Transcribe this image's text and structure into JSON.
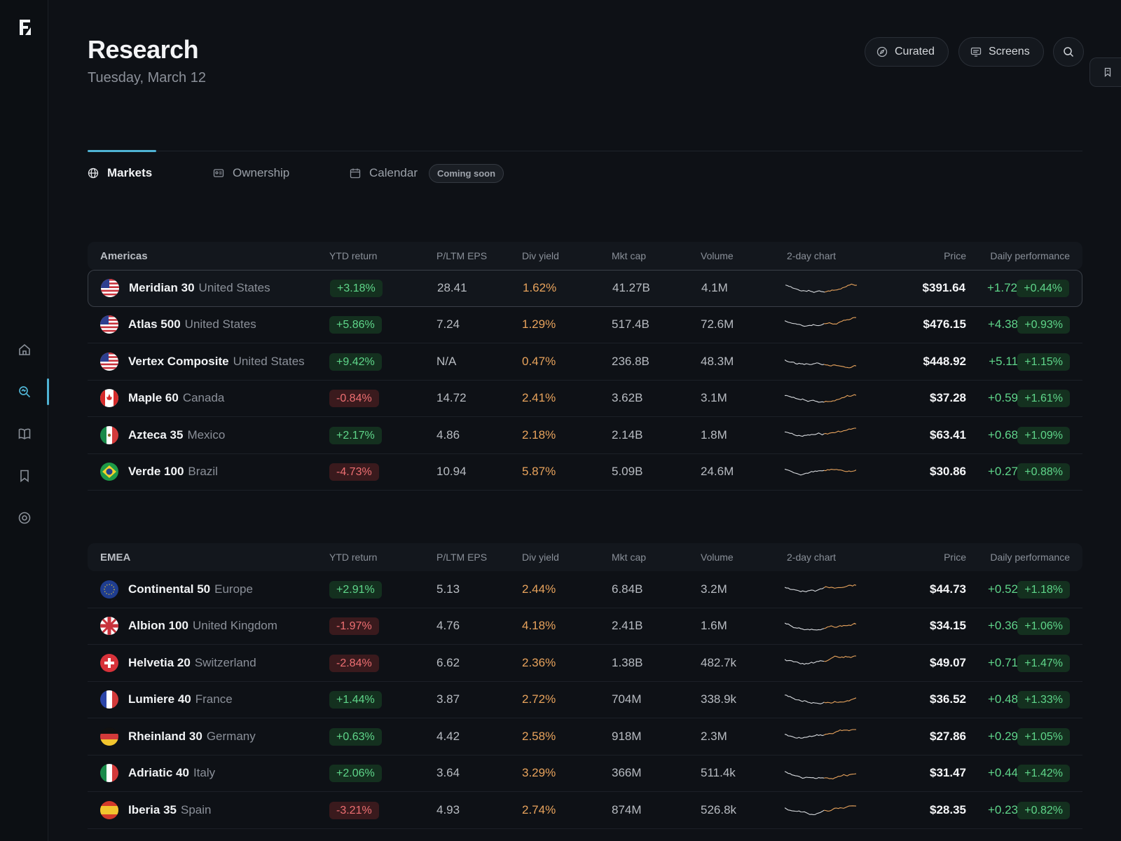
{
  "page": {
    "title": "Research",
    "date": "Tuesday, March 12"
  },
  "header_buttons": {
    "curated": "Curated",
    "screens": "Screens"
  },
  "tabs": [
    {
      "label": "Markets",
      "icon": "globe-icon"
    },
    {
      "label": "Ownership",
      "icon": "id-card-icon"
    },
    {
      "label": "Calendar",
      "icon": "calendar-icon",
      "badge": "Coming soon"
    }
  ],
  "sidebar": {
    "items": [
      "home-icon",
      "research-icon",
      "book-icon",
      "bookmark-icon",
      "settings-icon"
    ]
  },
  "columns": {
    "ytd": "YTD return",
    "pe": "P/LTM EPS",
    "div": "Div yield",
    "cap": "Mkt cap",
    "vol": "Volume",
    "chart": "2-day chart",
    "price": "Price",
    "perf": "Daily performance"
  },
  "colors": {
    "accent": "#4fb3d4",
    "positive": "#5fd68a",
    "negative": "#ee6f72",
    "yield": "#e8a35c"
  },
  "sections": [
    {
      "region": "Americas",
      "rows": [
        {
          "name": "Meridian 30",
          "country": "United States",
          "flag": "us",
          "ytd": "+3.18%",
          "pe": "28.41",
          "div": "1.62%",
          "cap": "41.27B",
          "vol": "4.1M",
          "price": "$391.64",
          "chg": "+1.72",
          "perf": "+0.44%"
        },
        {
          "name": "Atlas 500",
          "country": "United States",
          "flag": "us",
          "ytd": "+5.86%",
          "pe": "7.24",
          "div": "1.29%",
          "cap": "517.4B",
          "vol": "72.6M",
          "price": "$476.15",
          "chg": "+4.38",
          "perf": "+0.93%"
        },
        {
          "name": "Vertex Composite",
          "country": "United States",
          "flag": "us",
          "ytd": "+9.42%",
          "pe": "N/A",
          "div": "0.47%",
          "cap": "236.8B",
          "vol": "48.3M",
          "price": "$448.92",
          "chg": "+5.11",
          "perf": "+1.15%"
        },
        {
          "name": "Maple 60",
          "country": "Canada",
          "flag": "ca",
          "ytd": "-0.84%",
          "pe": "14.72",
          "div": "2.41%",
          "cap": "3.62B",
          "vol": "3.1M",
          "price": "$37.28",
          "chg": "+0.59",
          "perf": "+1.61%"
        },
        {
          "name": "Azteca 35",
          "country": "Mexico",
          "flag": "mx",
          "ytd": "+2.17%",
          "pe": "4.86",
          "div": "2.18%",
          "cap": "2.14B",
          "vol": "1.8M",
          "price": "$63.41",
          "chg": "+0.68",
          "perf": "+1.09%"
        },
        {
          "name": "Verde 100",
          "country": "Brazil",
          "flag": "br",
          "ytd": "-4.73%",
          "pe": "10.94",
          "div": "5.87%",
          "cap": "5.09B",
          "vol": "24.6M",
          "price": "$30.86",
          "chg": "+0.27",
          "perf": "+0.88%"
        }
      ]
    },
    {
      "region": "EMEA",
      "rows": [
        {
          "name": "Continental 50",
          "country": "Europe",
          "flag": "eu",
          "ytd": "+2.91%",
          "pe": "5.13",
          "div": "2.44%",
          "cap": "6.84B",
          "vol": "3.2M",
          "price": "$44.73",
          "chg": "+0.52",
          "perf": "+1.18%"
        },
        {
          "name": "Albion 100",
          "country": "United Kingdom",
          "flag": "uk",
          "ytd": "-1.97%",
          "pe": "4.76",
          "div": "4.18%",
          "cap": "2.41B",
          "vol": "1.6M",
          "price": "$34.15",
          "chg": "+0.36",
          "perf": "+1.06%"
        },
        {
          "name": "Helvetia 20",
          "country": "Switzerland",
          "flag": "ch",
          "ytd": "-2.84%",
          "pe": "6.62",
          "div": "2.36%",
          "cap": "1.38B",
          "vol": "482.7k",
          "price": "$49.07",
          "chg": "+0.71",
          "perf": "+1.47%"
        },
        {
          "name": "Lumiere 40",
          "country": "France",
          "flag": "fr",
          "ytd": "+1.44%",
          "pe": "3.87",
          "div": "2.72%",
          "cap": "704M",
          "vol": "338.9k",
          "price": "$36.52",
          "chg": "+0.48",
          "perf": "+1.33%"
        },
        {
          "name": "Rheinland 30",
          "country": "Germany",
          "flag": "de",
          "ytd": "+0.63%",
          "pe": "4.42",
          "div": "2.58%",
          "cap": "918M",
          "vol": "2.3M",
          "price": "$27.86",
          "chg": "+0.29",
          "perf": "+1.05%"
        },
        {
          "name": "Adriatic 40",
          "country": "Italy",
          "flag": "it",
          "ytd": "+2.06%",
          "pe": "3.64",
          "div": "3.29%",
          "cap": "366M",
          "vol": "511.4k",
          "price": "$31.47",
          "chg": "+0.44",
          "perf": "+1.42%"
        },
        {
          "name": "Iberia 35",
          "country": "Spain",
          "flag": "es",
          "ytd": "-3.21%",
          "pe": "4.93",
          "div": "2.74%",
          "cap": "874M",
          "vol": "526.8k",
          "price": "$28.35",
          "chg": "+0.23",
          "perf": "+0.82%"
        }
      ]
    }
  ]
}
